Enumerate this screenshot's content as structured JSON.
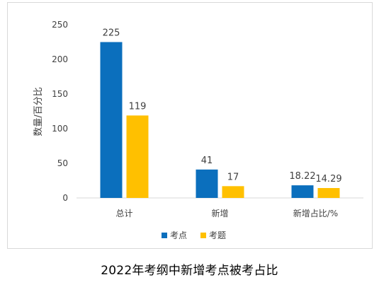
{
  "caption": "2022年考纲中新增考点被考占比",
  "chart_data": {
    "type": "bar",
    "categories": [
      "总计",
      "新增",
      "新增占比/%"
    ],
    "series": [
      {
        "name": "考点",
        "values": [
          225,
          41,
          18.22
        ],
        "labels": [
          "225",
          "41",
          "18.22"
        ],
        "color": "#0b6fbd"
      },
      {
        "name": "考题",
        "values": [
          119,
          17,
          14.29
        ],
        "labels": [
          "119",
          "17",
          "14.29"
        ],
        "color": "#ffc000"
      }
    ],
    "ylabel": "数量/百分比",
    "xlabel": "",
    "ylim": [
      0,
      250
    ],
    "yticks": [
      "0",
      "50",
      "100",
      "150",
      "200",
      "250"
    ],
    "grid": false,
    "legend_position": "bottom"
  }
}
